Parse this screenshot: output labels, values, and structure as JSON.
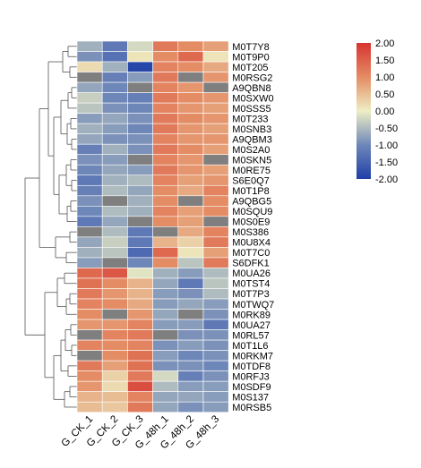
{
  "chart_data": {
    "type": "heatmap",
    "columns": [
      "G_CK_1",
      "G_CK_2",
      "G_CK_3",
      "G_48h_1",
      "G_48h_2",
      "G_48h_3"
    ],
    "rows": [
      "M0T7Y8",
      "M0T9P0",
      "M0T205",
      "M0RSG2",
      "A9QBN8",
      "M0SXW0",
      "M0SSS5",
      "M0T233",
      "M0SNB3",
      "A9QBM3",
      "M0S2A0",
      "M0SKN5",
      "M0RE75",
      "S6E0Q7",
      "M0T1P8",
      "A9QBG5",
      "M0SQU9",
      "M0S0E9",
      "M0S386",
      "M0U8X4",
      "M0T7C0",
      "S6DFK1",
      "M0UA26",
      "M0TST4",
      "M0T7P3",
      "M0TWQ7",
      "M0RK89",
      "M0UA27",
      "M0RL57",
      "M0T1L6",
      "M0RKM7",
      "M0TDF8",
      "M0RFJ3",
      "M0SDF9",
      "M0S137",
      "M0RSB5"
    ],
    "values": [
      [
        -0.6,
        -1.2,
        -0.2,
        1.2,
        1.0,
        0.8
      ],
      [
        -0.9,
        -1.3,
        0.1,
        1.0,
        1.4,
        0.1
      ],
      [
        0.2,
        -0.6,
        -1.9,
        1.1,
        1.0,
        0.7
      ],
      [
        null,
        -1.1,
        -0.8,
        1.2,
        null,
        0.9
      ],
      [
        -0.7,
        -1.0,
        null,
        1.1,
        0.9,
        null
      ],
      [
        -0.3,
        -1.0,
        -1.1,
        1.2,
        1.0,
        0.9
      ],
      [
        -0.4,
        -0.9,
        -1.0,
        1.1,
        0.9,
        0.8
      ],
      [
        -0.8,
        -0.7,
        -0.9,
        1.2,
        1.0,
        0.9
      ],
      [
        -0.6,
        -0.8,
        -1.0,
        1.2,
        0.9,
        0.8
      ],
      [
        -0.7,
        -0.9,
        -0.9,
        1.1,
        0.9,
        0.9
      ],
      [
        -1.1,
        -0.6,
        -0.9,
        1.2,
        1.0,
        0.8
      ],
      [
        -0.9,
        -0.8,
        null,
        1.1,
        0.9,
        null
      ],
      [
        -1.0,
        -0.7,
        -0.8,
        1.2,
        0.9,
        0.8
      ],
      [
        -1.2,
        -0.6,
        -0.5,
        1.1,
        0.8,
        0.9
      ],
      [
        -1.1,
        -0.5,
        -0.7,
        1.0,
        0.7,
        1.1
      ],
      [
        -0.9,
        null,
        -0.6,
        1.0,
        null,
        1.0
      ],
      [
        -1.0,
        -0.5,
        -0.6,
        1.1,
        0.8,
        1.0
      ],
      [
        -1.2,
        -0.7,
        null,
        1.0,
        0.8,
        null
      ],
      [
        null,
        -0.5,
        -1.2,
        null,
        0.7,
        1.1
      ],
      [
        -0.7,
        -0.3,
        -1.2,
        0.6,
        0.3,
        1.2
      ],
      [
        -0.6,
        -0.4,
        -1.4,
        1.4,
        0.1,
        0.8
      ],
      [
        -0.8,
        null,
        -1.0,
        1.0,
        -0.4,
        1.2
      ],
      [
        1.4,
        1.6,
        -0.1,
        -0.6,
        -0.8,
        -0.5
      ],
      [
        1.3,
        1.0,
        0.6,
        -0.7,
        -1.2,
        -0.4
      ],
      [
        1.2,
        0.9,
        0.6,
        -0.8,
        -0.9,
        -0.5
      ],
      [
        1.1,
        1.0,
        0.7,
        -0.8,
        -0.7,
        -0.8
      ],
      [
        1.0,
        null,
        0.9,
        -0.7,
        null,
        -0.9
      ],
      [
        0.9,
        0.9,
        1.1,
        -0.8,
        -0.8,
        -1.2
      ],
      [
        null,
        1.1,
        1.2,
        null,
        -0.9,
        -0.9
      ],
      [
        1.1,
        1.0,
        1.1,
        -0.9,
        -0.8,
        -0.9
      ],
      [
        null,
        1.0,
        1.3,
        -0.8,
        -1.0,
        -0.9
      ],
      [
        1.2,
        0.8,
        1.3,
        -0.9,
        -0.9,
        -1.0
      ],
      [
        1.0,
        0.3,
        1.2,
        -0.2,
        -1.1,
        -0.9
      ],
      [
        0.9,
        0.2,
        1.7,
        -0.5,
        -0.8,
        -0.8
      ],
      [
        0.6,
        0.5,
        1.1,
        -0.7,
        -0.7,
        -0.8
      ],
      [
        0.5,
        0.4,
        1.2,
        -0.7,
        -0.9,
        -0.8
      ]
    ],
    "legend": {
      "ticks": [
        "2.00",
        "1.50",
        "1.00",
        "0.50",
        "0.00",
        "-0.50",
        "-1.00",
        "-1.50",
        "-2.00"
      ],
      "range": [
        -2,
        2
      ],
      "colors": {
        "low": "#1f3fa8",
        "mid": "#eeeec4",
        "high": "#d63430",
        "na": "#7f7f7f"
      }
    },
    "dendrogram": "row clustering tree on left side"
  }
}
